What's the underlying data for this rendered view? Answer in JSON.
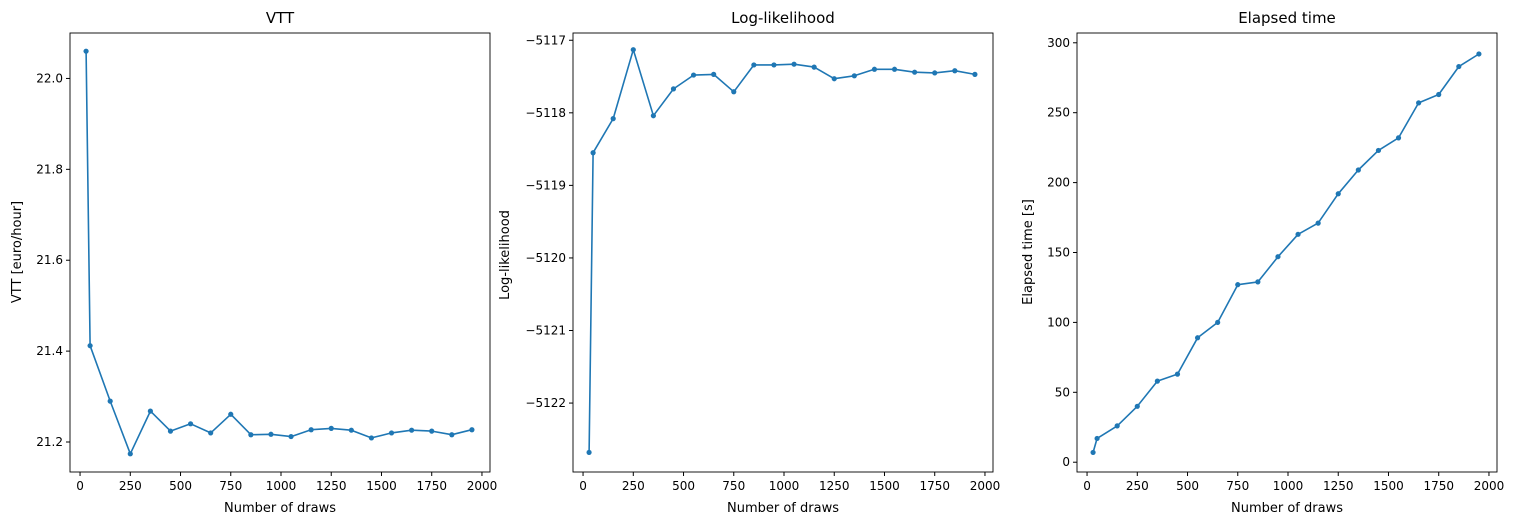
{
  "chart_data": [
    {
      "type": "line",
      "title": "VTT",
      "xlabel": "Number of draws",
      "ylabel": "VTT [euro/hour]",
      "xlim": [
        -50,
        2040
      ],
      "ylim": [
        21.134,
        22.1
      ],
      "xticks": [
        0,
        250,
        500,
        750,
        1000,
        1250,
        1500,
        1750,
        2000
      ],
      "xtick_labels": [
        "0",
        "250",
        "500",
        "750",
        "1000",
        "1250",
        "1500",
        "1750",
        "2000"
      ],
      "yticks": [
        21.2,
        21.4,
        21.6,
        21.8,
        22.0
      ],
      "ytick_labels": [
        "21.2",
        "21.4",
        "21.6",
        "21.8",
        "22.0"
      ],
      "color": "#1f77b4",
      "grid": false,
      "x": [
        30,
        50,
        150,
        250,
        350,
        450,
        550,
        650,
        750,
        850,
        950,
        1050,
        1150,
        1250,
        1350,
        1450,
        1550,
        1650,
        1750,
        1850,
        1950
      ],
      "y": [
        22.06,
        21.412,
        21.29,
        21.174,
        21.268,
        21.224,
        21.24,
        21.22,
        21.261,
        21.216,
        21.217,
        21.212,
        21.227,
        21.23,
        21.226,
        21.209,
        21.22,
        21.226,
        21.224,
        21.216,
        21.227
      ]
    },
    {
      "type": "line",
      "title": "Log-likelihood",
      "xlabel": "Number of draws",
      "ylabel": "Log-likelihood",
      "xlim": [
        -50,
        2040
      ],
      "ylim": [
        -5122.95,
        -5116.9
      ],
      "xticks": [
        0,
        250,
        500,
        750,
        1000,
        1250,
        1500,
        1750,
        2000
      ],
      "xtick_labels": [
        "0",
        "250",
        "500",
        "750",
        "1000",
        "1250",
        "1500",
        "1750",
        "2000"
      ],
      "yticks": [
        -5122,
        -5121,
        -5120,
        -5119,
        -5118,
        -5117
      ],
      "ytick_labels": [
        "−5122",
        "−5121",
        "−5120",
        "−5119",
        "−5118",
        "−5117"
      ],
      "color": "#1f77b4",
      "grid": false,
      "x": [
        30,
        50,
        150,
        250,
        350,
        450,
        550,
        650,
        750,
        850,
        950,
        1050,
        1150,
        1250,
        1350,
        1450,
        1550,
        1650,
        1750,
        1850,
        1950
      ],
      "y": [
        -5122.68,
        -5118.55,
        -5118.08,
        -5117.13,
        -5118.04,
        -5117.67,
        -5117.48,
        -5117.47,
        -5117.71,
        -5117.34,
        -5117.34,
        -5117.33,
        -5117.37,
        -5117.53,
        -5117.49,
        -5117.4,
        -5117.4,
        -5117.44,
        -5117.45,
        -5117.42,
        -5117.47
      ]
    },
    {
      "type": "line",
      "title": "Elapsed time",
      "xlabel": "Number of draws",
      "ylabel": "Elapsed time [s]",
      "xlim": [
        -50,
        2040
      ],
      "ylim": [
        -7,
        307
      ],
      "xticks": [
        0,
        250,
        500,
        750,
        1000,
        1250,
        1500,
        1750,
        2000
      ],
      "xtick_labels": [
        "0",
        "250",
        "500",
        "750",
        "1000",
        "1250",
        "1500",
        "1750",
        "2000"
      ],
      "yticks": [
        0,
        50,
        100,
        150,
        200,
        250,
        300
      ],
      "ytick_labels": [
        "0",
        "50",
        "100",
        "150",
        "200",
        "250",
        "300"
      ],
      "color": "#1f77b4",
      "grid": false,
      "x": [
        30,
        50,
        150,
        250,
        350,
        450,
        550,
        650,
        750,
        850,
        950,
        1050,
        1150,
        1250,
        1350,
        1450,
        1550,
        1650,
        1750,
        1850,
        1950
      ],
      "y": [
        7,
        17,
        26,
        40,
        58,
        63,
        89,
        100,
        127,
        129,
        147,
        163,
        171,
        192,
        209,
        223,
        232,
        257,
        263,
        283,
        292
      ]
    }
  ]
}
